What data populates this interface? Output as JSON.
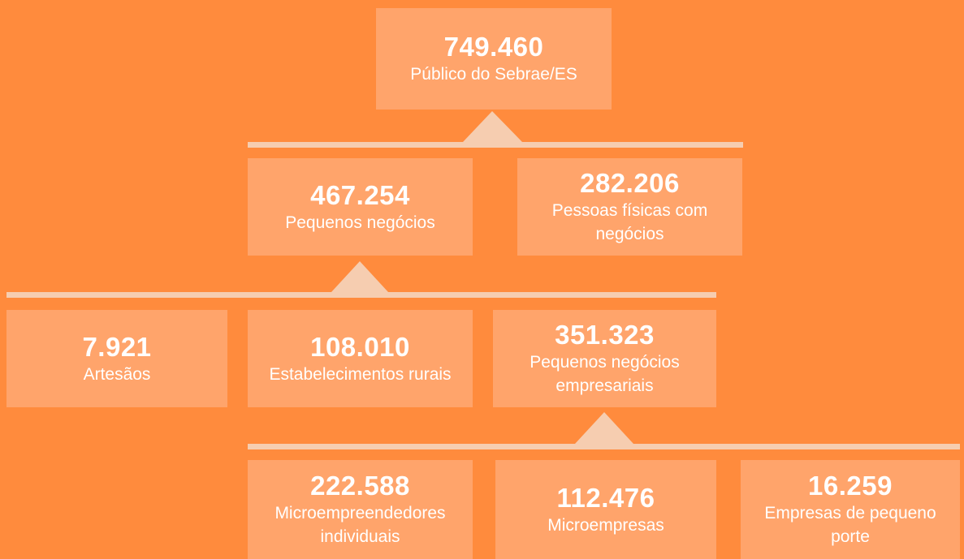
{
  "nodes": [
    {
      "value": "749.460",
      "label": "Público do Sebrae/ES"
    },
    {
      "value": "467.254",
      "label": "Pequenos negócios"
    },
    {
      "value": "282.206",
      "label": "Pessoas físicas com negócios"
    },
    {
      "value": "7.921",
      "label": "Artesãos"
    },
    {
      "value": "108.010",
      "label": "Estabelecimentos rurais"
    },
    {
      "value": "351.323",
      "label": "Pequenos negócios empresariais"
    },
    {
      "value": "222.588",
      "label": "Microempreendedores individuais"
    },
    {
      "value": "112.476",
      "label": "Microempresas"
    },
    {
      "value": "16.259",
      "label": "Empresas de pequeno porte"
    }
  ]
}
